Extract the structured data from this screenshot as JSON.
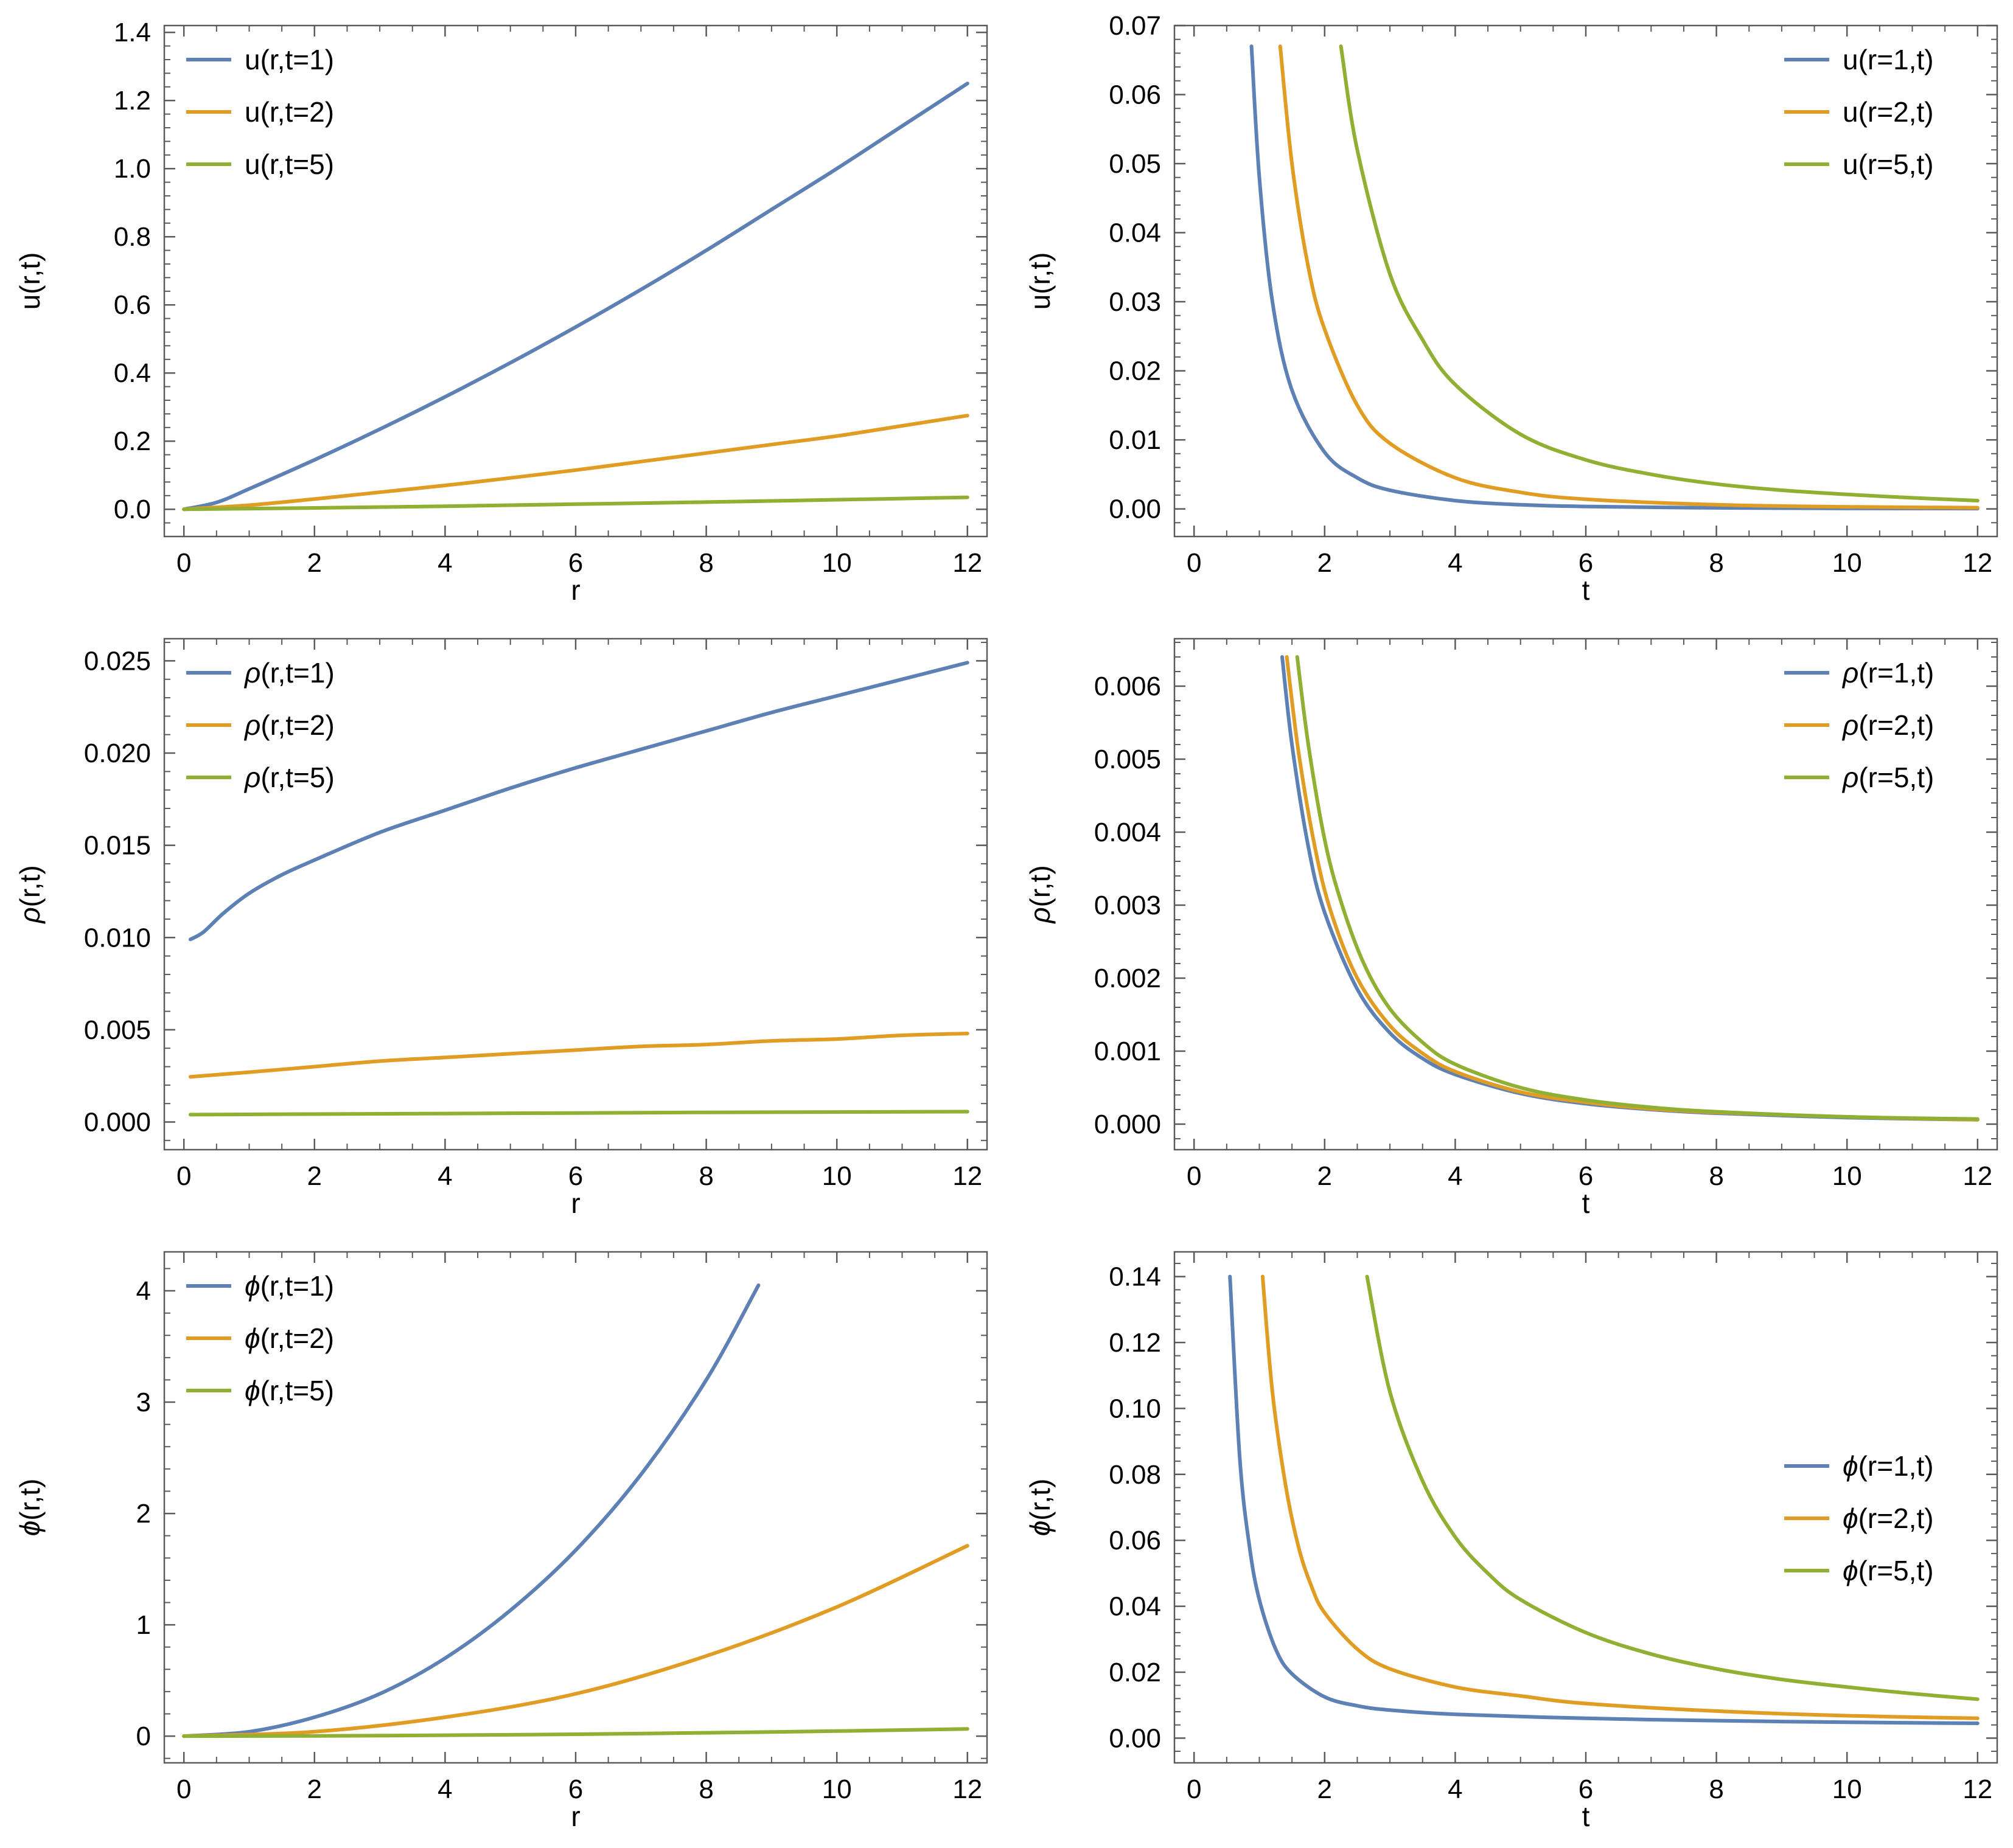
{
  "colors": {
    "blue": "#5e81b5",
    "orange": "#e19c24",
    "green": "#8fb032",
    "frame": "#5a5a5a"
  },
  "chart_data": [
    {
      "id": "u-vs-r",
      "type": "line",
      "xlabel": "r",
      "ylabel": "u(r,t)",
      "xlim": [
        -0.3,
        12.3
      ],
      "ylim": [
        -0.08,
        1.42
      ],
      "xticks": [
        0,
        2,
        4,
        6,
        8,
        10,
        12
      ],
      "xtick_labels": [
        "0",
        "2",
        "4",
        "6",
        "8",
        "10",
        "12"
      ],
      "yticks": [
        0,
        0.2,
        0.4,
        0.6,
        0.8,
        1.0,
        1.2,
        1.4
      ],
      "ytick_labels": [
        "0.0",
        "0.2",
        "0.4",
        "0.6",
        "0.8",
        "1.0",
        "1.2",
        "1.4"
      ],
      "legend_position": "top-left",
      "series": [
        {
          "name": "u(r,t=1)",
          "color": "#5e81b5",
          "x": [
            0,
            0.5,
            1,
            2,
            3,
            4,
            5,
            6,
            7,
            8,
            9,
            10,
            11,
            12
          ],
          "y": [
            0,
            0.02,
            0.06,
            0.145,
            0.235,
            0.33,
            0.43,
            0.535,
            0.645,
            0.76,
            0.88,
            1.0,
            1.125,
            1.25
          ]
        },
        {
          "name": "u(r,t=2)",
          "color": "#e19c24",
          "x": [
            0,
            1,
            2,
            3,
            4,
            5,
            6,
            7,
            8,
            9,
            10,
            11,
            12
          ],
          "y": [
            0,
            0.012,
            0.03,
            0.05,
            0.07,
            0.092,
            0.115,
            0.14,
            0.165,
            0.19,
            0.215,
            0.245,
            0.275
          ]
        },
        {
          "name": "u(r,t=5)",
          "color": "#8fb032",
          "x": [
            0,
            2,
            4,
            6,
            8,
            10,
            12
          ],
          "y": [
            0,
            0.004,
            0.009,
            0.015,
            0.021,
            0.028,
            0.035
          ]
        }
      ]
    },
    {
      "id": "u-vs-t",
      "type": "line",
      "xlabel": "t",
      "ylabel": "u(r,t)",
      "xlim": [
        -0.3,
        12.3
      ],
      "ylim": [
        -0.004,
        0.07
      ],
      "xticks": [
        0,
        2,
        4,
        6,
        8,
        10,
        12
      ],
      "xtick_labels": [
        "0",
        "2",
        "4",
        "6",
        "8",
        "10",
        "12"
      ],
      "yticks": [
        0,
        0.01,
        0.02,
        0.03,
        0.04,
        0.05,
        0.06,
        0.07
      ],
      "ytick_labels": [
        "0.00",
        "0.01",
        "0.02",
        "0.03",
        "0.04",
        "0.05",
        "0.06",
        "0.07"
      ],
      "legend_position": "top-right",
      "series": [
        {
          "name": "u(r=1,t)",
          "color": "#5e81b5",
          "x": [
            0.88,
            1.0,
            1.2,
            1.5,
            2.0,
            2.5,
            3.0,
            4.0,
            5.0,
            6.0,
            8.0,
            10.0,
            12.0
          ],
          "y": [
            0.067,
            0.048,
            0.03,
            0.0172,
            0.0082,
            0.0045,
            0.0027,
            0.0012,
            0.0006,
            0.00035,
            0.00015,
            8e-05,
            5e-05
          ]
        },
        {
          "name": "u(r=2,t)",
          "color": "#e19c24",
          "x": [
            1.32,
            1.5,
            1.75,
            2.0,
            2.5,
            3.0,
            4.0,
            5.0,
            6.0,
            8.0,
            10.0,
            12.0
          ],
          "y": [
            0.067,
            0.05,
            0.035,
            0.026,
            0.015,
            0.0095,
            0.0045,
            0.0024,
            0.0014,
            0.0006,
            0.0003,
            0.00018
          ]
        },
        {
          "name": "u(r=5,t)",
          "color": "#8fb032",
          "x": [
            2.25,
            2.5,
            3.0,
            3.5,
            4.0,
            5.0,
            6.0,
            7.0,
            8.0,
            9.0,
            10.0,
            11.0,
            12.0
          ],
          "y": [
            0.067,
            0.052,
            0.034,
            0.0245,
            0.018,
            0.0108,
            0.0071,
            0.005,
            0.0036,
            0.0027,
            0.0021,
            0.0016,
            0.0012
          ]
        }
      ]
    },
    {
      "id": "rho-vs-r",
      "type": "line",
      "xlabel": "r",
      "ylabel": "ρ(r,t)",
      "xlabel_italic": false,
      "ylabel_italic_first": true,
      "xlim": [
        -0.3,
        12.3
      ],
      "ylim": [
        -0.0015,
        0.0262
      ],
      "xticks": [
        0,
        2,
        4,
        6,
        8,
        10,
        12
      ],
      "xtick_labels": [
        "0",
        "2",
        "4",
        "6",
        "8",
        "10",
        "12"
      ],
      "yticks": [
        0,
        0.005,
        0.01,
        0.015,
        0.02,
        0.025
      ],
      "ytick_labels": [
        "0.000",
        "0.005",
        "0.010",
        "0.015",
        "0.020",
        "0.025"
      ],
      "legend_position": "top-left",
      "series": [
        {
          "name": "ρ(r,t=1)",
          "color": "#5e81b5",
          "x": [
            0.1,
            0.3,
            0.6,
            1.0,
            1.5,
            2,
            3,
            4,
            5,
            6,
            7,
            8,
            9,
            10,
            11,
            12
          ],
          "y": [
            0.0099,
            0.0103,
            0.0113,
            0.0124,
            0.0134,
            0.0142,
            0.0157,
            0.0169,
            0.0181,
            0.0192,
            0.0202,
            0.0212,
            0.0222,
            0.0231,
            0.024,
            0.0249
          ]
        },
        {
          "name": "ρ(r,t=2)",
          "color": "#e19c24",
          "x": [
            0.1,
            1,
            2,
            3,
            4,
            5,
            6,
            7,
            8,
            9,
            10,
            11,
            12
          ],
          "y": [
            0.00245,
            0.0027,
            0.003,
            0.0033,
            0.0035,
            0.0037,
            0.0039,
            0.0041,
            0.0042,
            0.0044,
            0.0045,
            0.0047,
            0.0048
          ]
        },
        {
          "name": "ρ(r,t=5)",
          "color": "#8fb032",
          "x": [
            0.1,
            2,
            4,
            6,
            8,
            10,
            12
          ],
          "y": [
            0.0004,
            0.00043,
            0.00046,
            0.00049,
            0.00052,
            0.00054,
            0.00056
          ]
        }
      ]
    },
    {
      "id": "rho-vs-t",
      "type": "line",
      "xlabel": "t",
      "ylabel": "ρ(r,t)",
      "xlim": [
        -0.3,
        12.3
      ],
      "ylim": [
        -0.00035,
        0.00665
      ],
      "xticks": [
        0,
        2,
        4,
        6,
        8,
        10,
        12
      ],
      "xtick_labels": [
        "0",
        "2",
        "4",
        "6",
        "8",
        "10",
        "12"
      ],
      "yticks": [
        0,
        0.001,
        0.002,
        0.003,
        0.004,
        0.005,
        0.006
      ],
      "ytick_labels": [
        "0.000",
        "0.001",
        "0.002",
        "0.003",
        "0.004",
        "0.005",
        "0.006"
      ],
      "legend_position": "top-right",
      "series": [
        {
          "name": "ρ(r=1,t)",
          "color": "#5e81b5",
          "x": [
            1.35,
            1.5,
            1.75,
            2.0,
            2.5,
            3.0,
            3.5,
            4.0,
            5.0,
            6.0,
            7.0,
            8.0,
            10.0,
            12.0
          ],
          "y": [
            0.0064,
            0.0052,
            0.0038,
            0.0029,
            0.00185,
            0.00125,
            0.0009,
            0.00068,
            0.00042,
            0.00028,
            0.0002,
            0.00015,
            9e-05,
            6e-05
          ]
        },
        {
          "name": "ρ(r=2,t)",
          "color": "#e19c24",
          "x": [
            1.42,
            1.6,
            1.85,
            2.1,
            2.5,
            3.0,
            3.5,
            4.0,
            5.0,
            6.0,
            7.0,
            8.0,
            10.0,
            12.0
          ],
          "y": [
            0.0064,
            0.0051,
            0.0038,
            0.0029,
            0.002,
            0.00135,
            0.00097,
            0.00072,
            0.00044,
            0.0003,
            0.00021,
            0.00016,
            0.0001,
            6e-05
          ]
        },
        {
          "name": "ρ(r=5,t)",
          "color": "#8fb032",
          "x": [
            1.58,
            1.75,
            2.0,
            2.25,
            2.6,
            3.0,
            3.5,
            4.0,
            5.0,
            6.0,
            7.0,
            8.0,
            10.0,
            12.0
          ],
          "y": [
            0.0064,
            0.0052,
            0.0039,
            0.00305,
            0.0022,
            0.00158,
            0.00112,
            0.00082,
            0.0005,
            0.00033,
            0.00023,
            0.00017,
            0.0001,
            7e-05
          ]
        }
      ]
    },
    {
      "id": "phi-vs-r",
      "type": "line",
      "xlabel": "r",
      "ylabel": "ϕ(r,t)",
      "xlim": [
        -0.3,
        12.3
      ],
      "ylim": [
        -0.24,
        4.35
      ],
      "xticks": [
        0,
        2,
        4,
        6,
        8,
        10,
        12
      ],
      "xtick_labels": [
        "0",
        "2",
        "4",
        "6",
        "8",
        "10",
        "12"
      ],
      "yticks": [
        0,
        1,
        2,
        3,
        4
      ],
      "ytick_labels": [
        "0",
        "1",
        "2",
        "3",
        "4"
      ],
      "legend_position": "top-left",
      "series": [
        {
          "name": "ϕ(r,t=1)",
          "color": "#5e81b5",
          "x": [
            0,
            1,
            2,
            3,
            4,
            5,
            6,
            7,
            8,
            8.8
          ],
          "y": [
            0,
            0.04,
            0.17,
            0.38,
            0.7,
            1.13,
            1.67,
            2.35,
            3.2,
            4.05
          ]
        },
        {
          "name": "ϕ(r,t=2)",
          "color": "#e19c24",
          "x": [
            0,
            2,
            4,
            6,
            8,
            10,
            12
          ],
          "y": [
            0,
            0.04,
            0.17,
            0.38,
            0.72,
            1.16,
            1.71
          ]
        },
        {
          "name": "ϕ(r,t=5)",
          "color": "#8fb032",
          "x": [
            0,
            2,
            4,
            6,
            8,
            10,
            12
          ],
          "y": [
            0,
            0.002,
            0.008,
            0.017,
            0.03,
            0.045,
            0.065
          ]
        }
      ]
    },
    {
      "id": "phi-vs-t",
      "type": "line",
      "xlabel": "t",
      "ylabel": "ϕ(r,t)",
      "xlim": [
        -0.3,
        12.3
      ],
      "ylim": [
        -0.0075,
        0.1475
      ],
      "xticks": [
        0,
        2,
        4,
        6,
        8,
        10,
        12
      ],
      "xtick_labels": [
        "0",
        "2",
        "4",
        "6",
        "8",
        "10",
        "12"
      ],
      "yticks": [
        0,
        0.02,
        0.04,
        0.06,
        0.08,
        0.1,
        0.12,
        0.14
      ],
      "ytick_labels": [
        "0.00",
        "0.02",
        "0.04",
        "0.06",
        "0.08",
        "0.10",
        "0.12",
        "0.14"
      ],
      "legend_position": "middle-right",
      "series": [
        {
          "name": "ϕ(r=1,t)",
          "color": "#5e81b5",
          "x": [
            0.55,
            0.7,
            0.85,
            1.0,
            1.25,
            1.5,
            2.0,
            2.5,
            3.0,
            4.0,
            6.0,
            8.0,
            10.0,
            12.0
          ],
          "y": [
            0.14,
            0.085,
            0.058,
            0.042,
            0.027,
            0.0195,
            0.0125,
            0.0098,
            0.0085,
            0.0072,
            0.006,
            0.0053,
            0.0048,
            0.0045
          ]
        },
        {
          "name": "ϕ(r=2,t)",
          "color": "#e19c24",
          "x": [
            1.05,
            1.2,
            1.4,
            1.6,
            1.8,
            2.0,
            2.5,
            3.0,
            4.0,
            5.0,
            6.0,
            8.0,
            10.0,
            12.0
          ],
          "y": [
            0.14,
            0.105,
            0.077,
            0.058,
            0.046,
            0.038,
            0.027,
            0.021,
            0.0155,
            0.0128,
            0.0105,
            0.0082,
            0.0068,
            0.006
          ]
        },
        {
          "name": "ϕ(r=5,t)",
          "color": "#8fb032",
          "x": [
            2.65,
            3.0,
            3.5,
            4.0,
            4.5,
            5.0,
            6.0,
            7.0,
            8.0,
            9.0,
            10.0,
            11.0,
            12.0
          ],
          "y": [
            0.14,
            0.105,
            0.078,
            0.061,
            0.05,
            0.042,
            0.032,
            0.0255,
            0.021,
            0.0178,
            0.0155,
            0.0135,
            0.0118
          ]
        }
      ]
    }
  ]
}
